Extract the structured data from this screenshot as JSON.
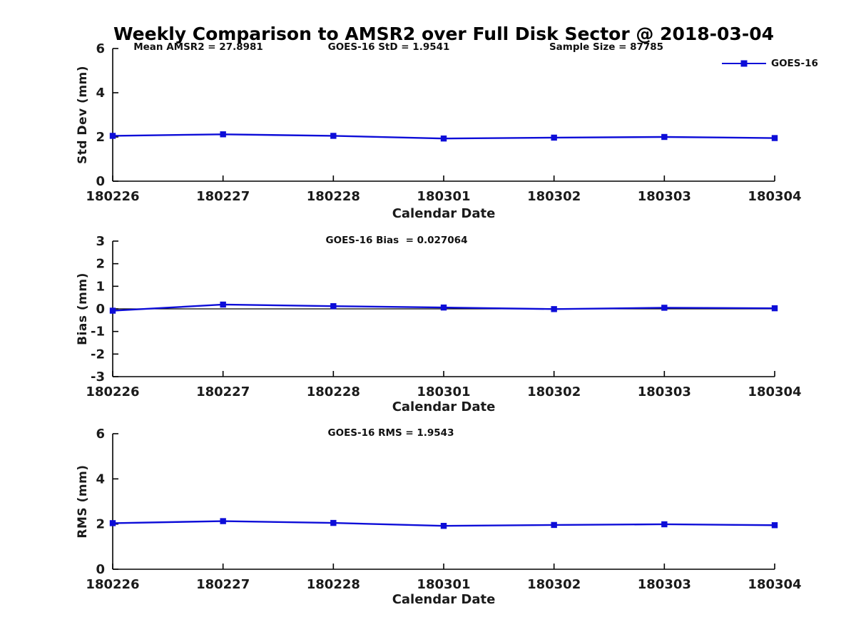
{
  "title": "Weekly Comparison to AMSR2 over Full Disk Sector @ 2018-03-04",
  "legend": {
    "label": "GOES-16"
  },
  "colors": {
    "series": "#0d0dd8",
    "axis": "#000000",
    "text": "#1a1a1a",
    "background": "#ffffff"
  },
  "chart_data": [
    {
      "type": "line",
      "name": "std-dev",
      "ylabel": "Std Dev (mm)",
      "xlabel": "Calendar Date",
      "categories": [
        "180226",
        "180227",
        "180228",
        "180301",
        "180302",
        "180303",
        "180304"
      ],
      "series": [
        {
          "name": "GOES-16",
          "values": [
            2.05,
            2.12,
            2.05,
            1.93,
            1.97,
            2.0,
            1.95
          ]
        }
      ],
      "ylim": [
        0,
        6
      ],
      "yticks": [
        0,
        2,
        4,
        6
      ],
      "grid": false,
      "legend_position": "top-right",
      "marker": "square",
      "annotations": [
        "Mean AMSR2 = 27.8981",
        "GOES-16 StD = 1.9541",
        "Sample Size = 87785"
      ]
    },
    {
      "type": "line",
      "name": "bias",
      "ylabel": "Bias (mm)",
      "xlabel": "Calendar Date",
      "categories": [
        "180226",
        "180227",
        "180228",
        "180301",
        "180302",
        "180303",
        "180304"
      ],
      "series": [
        {
          "name": "GOES-16",
          "values": [
            -0.08,
            0.19,
            0.12,
            0.06,
            -0.01,
            0.05,
            0.027
          ]
        }
      ],
      "ylim": [
        -3,
        3
      ],
      "yticks": [
        -3,
        -2,
        -1,
        0,
        1,
        2,
        3
      ],
      "zero_line": true,
      "grid": false,
      "marker": "square",
      "annotations": [
        "GOES-16 Bias  = 0.027064"
      ]
    },
    {
      "type": "line",
      "name": "rms",
      "ylabel": "RMS (mm)",
      "xlabel": "Calendar Date",
      "categories": [
        "180226",
        "180227",
        "180228",
        "180301",
        "180302",
        "180303",
        "180304"
      ],
      "series": [
        {
          "name": "GOES-16",
          "values": [
            2.04,
            2.13,
            2.05,
            1.92,
            1.96,
            1.99,
            1.95
          ]
        }
      ],
      "ylim": [
        0,
        6
      ],
      "yticks": [
        0,
        2,
        4,
        6
      ],
      "grid": false,
      "marker": "square",
      "annotations": [
        "GOES-16 RMS = 1.9543"
      ]
    }
  ]
}
